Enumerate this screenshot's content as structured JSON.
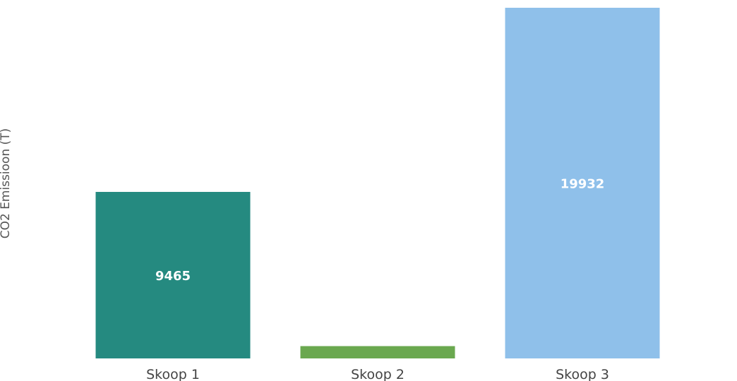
{
  "chart_data": {
    "type": "bar",
    "categories": [
      "Skoop 1",
      "Skoop 2",
      "Skoop 3"
    ],
    "values": [
      9465,
      700,
      19932
    ],
    "data_labels": [
      "9465",
      "",
      "19932"
    ],
    "colors": [
      "#258a80",
      "#6aa84f",
      "#8fc0ea"
    ],
    "title": "",
    "xlabel": "",
    "ylabel": "CO2 Emissioon (T)",
    "ylim": [
      0,
      19932
    ],
    "grid": false,
    "legend": "none"
  }
}
